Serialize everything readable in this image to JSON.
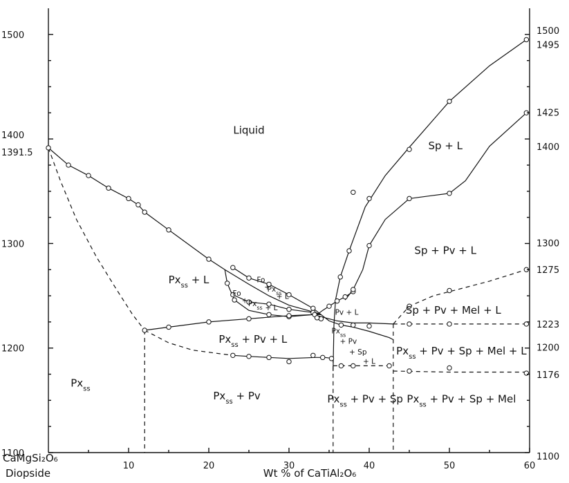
{
  "chart_data": {
    "type": "scatter",
    "title": "",
    "x_axis": {
      "title": "Wt % of CaTiAl₂O₆",
      "range": [
        0,
        60
      ],
      "ticks": [
        10,
        20,
        30,
        40,
        50,
        60
      ],
      "left_endmember": "CaMgSi₂O₆",
      "left_endmember_name": "Diopside"
    },
    "y_axis_left": {
      "range": [
        1100,
        1525
      ],
      "ticks": [
        {
          "value": 1500,
          "label": "1500"
        },
        {
          "value": 1400,
          "label": "1400"
        },
        {
          "value": 1391.5,
          "label": "1391.5"
        },
        {
          "value": 1300,
          "label": "1300"
        },
        {
          "value": 1200,
          "label": "1200"
        },
        {
          "value": 1100,
          "label": "1100"
        }
      ]
    },
    "y_axis_right": {
      "ticks": [
        {
          "value": 1500,
          "label": "1500"
        },
        {
          "value": 1495,
          "label": "1495"
        },
        {
          "value": 1425,
          "label": "1425"
        },
        {
          "value": 1400,
          "label": "1400"
        },
        {
          "value": 1300,
          "label": "1300"
        },
        {
          "value": 1275,
          "label": "1275"
        },
        {
          "value": 1223,
          "label": "1223"
        },
        {
          "value": 1200,
          "label": "1200"
        },
        {
          "value": 1176,
          "label": "1176"
        },
        {
          "value": 1100,
          "label": "1100"
        }
      ]
    },
    "phase_fields": [
      {
        "label": "Liquid",
        "x": 25,
        "y": 1405
      },
      {
        "label": "Sp + L",
        "x": 49.5,
        "y": 1390
      },
      {
        "label": "Sp + Pv + L",
        "x": 49.5,
        "y": 1290
      },
      {
        "label": "Px",
        "sub": "ss",
        "rest": " + L",
        "x": 17.5,
        "y": 1262
      },
      {
        "label": "Sp + Pv + Mel + L",
        "x": 50.5,
        "y": 1233
      },
      {
        "label": "Px",
        "sub": "ss",
        "rest": " + Pv + L",
        "x": 25.5,
        "y": 1205
      },
      {
        "label": "Px",
        "sub": "ss",
        "rest": " + Pv + Sp + Mel + L",
        "x": 51.5,
        "y": 1194
      },
      {
        "label": "Px",
        "sub": "ss",
        "rest": "",
        "x": 4,
        "y": 1163
      },
      {
        "label": "Px",
        "sub": "ss",
        "rest": " + Pv",
        "x": 23.5,
        "y": 1151
      },
      {
        "label": "Px",
        "sub": "ss",
        "rest": " + Pv + Sp",
        "x": 39.5,
        "y": 1148
      },
      {
        "label": "Px",
        "sub": "ss",
        "rest": " + Pv + Sp + Mel",
        "x": 51.5,
        "y": 1148
      },
      {
        "label": "Pv + L",
        "x": 37.2,
        "y": 1232
      }
    ],
    "small_labels": [
      {
        "text": "Fo",
        "x": 23.5,
        "y": 1250
      },
      {
        "text": "+",
        "x": 24.5,
        "y": 1243
      },
      {
        "text": "Px",
        "sub": "ss",
        "x": 25.8,
        "y": 1240
      },
      {
        "text": "+ L",
        "x": 27.8,
        "y": 1236
      },
      {
        "text": "Fo",
        "x": 26.5,
        "y": 1263
      },
      {
        "text": "+",
        "x": 27.3,
        "y": 1256
      },
      {
        "text": "Px",
        "sub": "ss",
        "x": 28.2,
        "y": 1254
      },
      {
        "text": "+ L",
        "x": 29.2,
        "y": 1247
      },
      {
        "text": "Px",
        "sub": "ss",
        "x": 36.2,
        "y": 1214
      },
      {
        "text": "+ Pv",
        "x": 37.4,
        "y": 1204
      },
      {
        "text": "+ Sp",
        "x": 38.6,
        "y": 1194
      },
      {
        "text": "+ L",
        "x": 40.0,
        "y": 1185
      }
    ],
    "boundaries": {
      "solid": [
        [
          [
            0,
            1391.5
          ],
          [
            2.5,
            1375
          ],
          [
            5,
            1365
          ],
          [
            7.5,
            1353
          ],
          [
            10,
            1343
          ],
          [
            11.2,
            1337
          ],
          [
            12,
            1330
          ],
          [
            15,
            1313
          ],
          [
            20,
            1285
          ],
          [
            22,
            1275
          ],
          [
            25,
            1261
          ],
          [
            27.5,
            1250
          ],
          [
            30,
            1241
          ],
          [
            33.3,
            1234
          ],
          [
            34,
            1232
          ]
        ],
        [
          [
            12,
            1217
          ],
          [
            15,
            1220
          ],
          [
            20,
            1225
          ],
          [
            25,
            1228
          ],
          [
            30,
            1231
          ],
          [
            33,
            1232
          ],
          [
            36,
            1226
          ],
          [
            38,
            1224
          ],
          [
            40,
            1224
          ],
          [
            43,
            1223
          ]
        ],
        [
          [
            22,
            1275
          ],
          [
            22.3,
            1262
          ],
          [
            23.2,
            1246
          ],
          [
            25,
            1236
          ],
          [
            27.5,
            1232
          ],
          [
            30,
            1230
          ],
          [
            33,
            1232
          ],
          [
            34,
            1232
          ]
        ],
        [
          [
            23,
            1277
          ],
          [
            25,
            1267
          ],
          [
            27.5,
            1261
          ],
          [
            30,
            1251
          ],
          [
            33,
            1238
          ],
          [
            34,
            1232
          ]
        ],
        [
          [
            23,
            1251
          ],
          [
            25,
            1244
          ],
          [
            27.5,
            1242
          ],
          [
            30,
            1237
          ],
          [
            33,
            1234
          ],
          [
            34,
            1232
          ]
        ],
        [
          [
            34,
            1232
          ],
          [
            35,
            1226
          ],
          [
            36.5,
            1222
          ],
          [
            38,
            1220
          ],
          [
            40,
            1216
          ],
          [
            42.5,
            1210
          ],
          [
            43,
            1208
          ]
        ],
        [
          [
            23,
            1193
          ],
          [
            25,
            1192
          ],
          [
            27.5,
            1191
          ],
          [
            30,
            1190
          ],
          [
            33.3,
            1191
          ],
          [
            34.5,
            1191
          ],
          [
            35.5,
            1190
          ]
        ],
        [
          [
            33.5,
            1232
          ],
          [
            34.2,
            1236
          ],
          [
            35,
            1240
          ],
          [
            36,
            1245
          ],
          [
            37,
            1249
          ],
          [
            38,
            1254
          ]
        ],
        [
          [
            35.5,
            1178
          ],
          [
            35.6,
            1222
          ],
          [
            35.8,
            1246
          ],
          [
            36.4,
            1268
          ],
          [
            37.5,
            1293
          ],
          [
            39.5,
            1335
          ],
          [
            42,
            1365
          ],
          [
            45,
            1392
          ],
          [
            50,
            1436
          ],
          [
            55,
            1470
          ],
          [
            59.6,
            1495
          ]
        ],
        [
          [
            37,
            1246
          ],
          [
            38,
            1256
          ],
          [
            39.2,
            1275
          ],
          [
            40,
            1298
          ],
          [
            42,
            1323
          ],
          [
            45,
            1343
          ],
          [
            48,
            1346
          ],
          [
            50,
            1348
          ],
          [
            52,
            1360
          ],
          [
            55,
            1393
          ],
          [
            59.6,
            1425
          ]
        ]
      ],
      "dashed": [
        [
          [
            0,
            1391.5
          ],
          [
            1.5,
            1360
          ],
          [
            3.5,
            1323
          ],
          [
            6,
            1287
          ],
          [
            8.5,
            1256
          ],
          [
            10.5,
            1232
          ],
          [
            12,
            1217
          ]
        ],
        [
          [
            12,
            1217
          ],
          [
            15,
            1205
          ],
          [
            18,
            1198
          ],
          [
            21,
            1195
          ],
          [
            23,
            1193
          ]
        ],
        [
          [
            12,
            1217
          ],
          [
            12,
            1100
          ]
        ],
        [
          [
            35.5,
            1190
          ],
          [
            35.5,
            1100
          ]
        ],
        [
          [
            43,
            1223
          ],
          [
            43,
            1100
          ]
        ],
        [
          [
            35.5,
            1183
          ],
          [
            38,
            1183
          ],
          [
            43,
            1183
          ]
        ],
        [
          [
            43,
            1178
          ],
          [
            50,
            1177
          ],
          [
            59.6,
            1177
          ]
        ],
        [
          [
            43,
            1223
          ],
          [
            50,
            1223
          ],
          [
            59.6,
            1223
          ]
        ],
        [
          [
            43,
            1223
          ],
          [
            45,
            1240
          ],
          [
            48,
            1250
          ],
          [
            52,
            1258
          ],
          [
            55,
            1264
          ],
          [
            59.6,
            1275
          ]
        ]
      ]
    },
    "points": [
      [
        0,
        1391.5
      ],
      [
        2.5,
        1375
      ],
      [
        5,
        1365
      ],
      [
        7.5,
        1353
      ],
      [
        10,
        1343
      ],
      [
        11.2,
        1337
      ],
      [
        12,
        1330
      ],
      [
        15,
        1313
      ],
      [
        20,
        1285
      ],
      [
        23,
        1277
      ],
      [
        25,
        1267
      ],
      [
        27.5,
        1261
      ],
      [
        30,
        1251
      ],
      [
        33,
        1238
      ],
      [
        23,
        1251
      ],
      [
        25,
        1244
      ],
      [
        27.5,
        1242
      ],
      [
        30,
        1237
      ],
      [
        33,
        1234
      ],
      [
        22.3,
        1262
      ],
      [
        23.2,
        1246
      ],
      [
        27.5,
        1232
      ],
      [
        30,
        1230
      ],
      [
        12,
        1217
      ],
      [
        15,
        1220
      ],
      [
        20,
        1225
      ],
      [
        25,
        1228
      ],
      [
        30,
        1231
      ],
      [
        33.2,
        1232
      ],
      [
        23,
        1193
      ],
      [
        25,
        1192
      ],
      [
        27.5,
        1191
      ],
      [
        30,
        1187
      ],
      [
        33,
        1193
      ],
      [
        34.2,
        1191
      ],
      [
        35.3,
        1190
      ],
      [
        35,
        1240
      ],
      [
        36,
        1245
      ],
      [
        37,
        1249
      ],
      [
        38,
        1254
      ],
      [
        36.4,
        1268
      ],
      [
        37.5,
        1293
      ],
      [
        38,
        1349
      ],
      [
        40,
        1343
      ],
      [
        45,
        1390
      ],
      [
        50,
        1436
      ],
      [
        59.6,
        1495
      ],
      [
        38,
        1256
      ],
      [
        40,
        1298
      ],
      [
        45,
        1343
      ],
      [
        50,
        1348
      ],
      [
        59.6,
        1425
      ],
      [
        36.5,
        1222
      ],
      [
        38,
        1222
      ],
      [
        40,
        1221
      ],
      [
        36.5,
        1183
      ],
      [
        38,
        1183
      ],
      [
        42.5,
        1183
      ],
      [
        45,
        1178
      ],
      [
        50,
        1181
      ],
      [
        59.6,
        1176
      ],
      [
        45,
        1223
      ],
      [
        50,
        1223
      ],
      [
        59.6,
        1223
      ],
      [
        45,
        1240
      ],
      [
        50,
        1255
      ],
      [
        59.6,
        1275
      ],
      [
        34,
        1228
      ],
      [
        33.5,
        1229
      ]
    ]
  }
}
